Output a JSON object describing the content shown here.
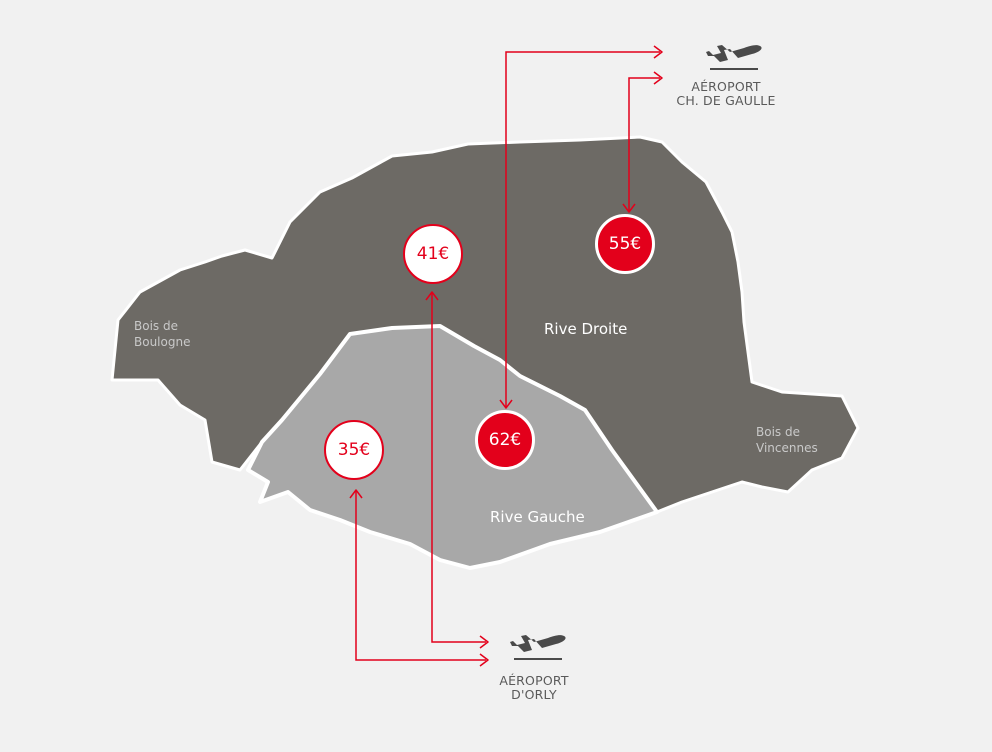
{
  "colors": {
    "background": "#f1f1f1",
    "rive_droite": "#6d6a65",
    "rive_gauche": "#a8a8a8",
    "accent": "#e3001b"
  },
  "areas": {
    "bois_boulogne": "Bois de Boulogne",
    "bois_vincennes": "Bois de Vincennes"
  },
  "zones": {
    "rive_droite": "Rive Droite",
    "rive_gauche": "Rive Gauche"
  },
  "prices": [
    {
      "id": "p41",
      "label": "41€",
      "style": "light"
    },
    {
      "id": "p55",
      "label": "55€",
      "style": "dark"
    },
    {
      "id": "p62",
      "label": "62€",
      "style": "dark"
    },
    {
      "id": "p35",
      "label": "35€",
      "style": "light"
    }
  ],
  "airports": {
    "cdg": {
      "line1": "AÉROPORT",
      "line2": "CH. DE GAULLE",
      "icon": "airplane-icon"
    },
    "orly": {
      "line1": "AÉROPORT",
      "line2": "D'ORLY",
      "icon": "airplane-icon"
    }
  }
}
